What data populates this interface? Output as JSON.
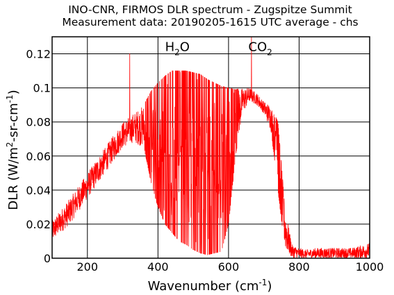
{
  "chart_data": {
    "type": "line",
    "title": "INO-CNR, FIRMOS DLR spectrum - Zugspitze Summit",
    "subtitle": "Measurement data: 20190205-1615 UTC average - chs",
    "xlabel": {
      "base": "Wavenumber (cm",
      "sup": "-1",
      "tail": ")"
    },
    "ylabel": {
      "p1": "DLR (W/m",
      "sup1": "2",
      "p2": "-sr-cm",
      "sup2": "-1",
      "p3": ")"
    },
    "xlim": [
      100,
      1000
    ],
    "ylim": [
      0,
      0.13
    ],
    "xticks": [
      200,
      400,
      600,
      800,
      1000
    ],
    "yticks": [
      0,
      0.02,
      0.04,
      0.06,
      0.08,
      0.1,
      0.12
    ],
    "ytick_labels": [
      "0",
      "0.02",
      "0.04",
      "0.06",
      "0.08",
      "0.1",
      "0.12"
    ],
    "grid": true,
    "line_color": "#ff0000",
    "annotations": [
      {
        "x": 455,
        "y": 0.125,
        "base": "H",
        "sub": "2",
        "tail": "O"
      },
      {
        "x": 690,
        "y": 0.125,
        "base": "CO",
        "sub": "2",
        "tail": ""
      }
    ],
    "series": [
      {
        "envelope_x": [
          100,
          150,
          200,
          250,
          300,
          330,
          360,
          380,
          400,
          420,
          440,
          460,
          480,
          500,
          520,
          540,
          560,
          580,
          600,
          620,
          640,
          660,
          680,
          700,
          720,
          740,
          760,
          780,
          800,
          820,
          850,
          900,
          950,
          1000
        ],
        "envelope_upper": [
          0.022,
          0.035,
          0.05,
          0.065,
          0.08,
          0.085,
          0.09,
          0.098,
          0.103,
          0.107,
          0.11,
          0.11,
          0.11,
          0.109,
          0.108,
          0.105,
          0.103,
          0.101,
          0.1,
          0.099,
          0.1,
          0.1,
          0.097,
          0.092,
          0.09,
          0.08,
          0.03,
          0.008,
          0.006,
          0.005,
          0.006,
          0.006,
          0.006,
          0.009
        ],
        "envelope_lower": [
          0.01,
          0.02,
          0.035,
          0.05,
          0.065,
          0.068,
          0.065,
          0.045,
          0.03,
          0.02,
          0.015,
          0.01,
          0.008,
          0.005,
          0.003,
          0.002,
          0.003,
          0.004,
          0.02,
          0.06,
          0.085,
          0.092,
          0.09,
          0.085,
          0.075,
          0.04,
          0.005,
          0.0,
          0.0,
          0.0,
          0.0,
          0.0,
          0.0,
          0.0
        ],
        "spikes": [
          [
            320,
            0.12
          ],
          [
            665,
            0.13
          ]
        ]
      }
    ]
  }
}
